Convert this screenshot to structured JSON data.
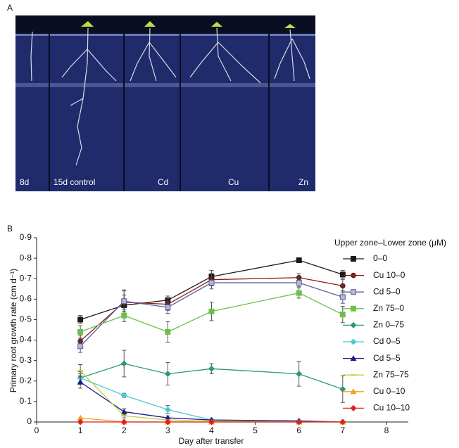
{
  "panel_a": {
    "label": "A",
    "panels": [
      "8d",
      "15d control",
      "Cd",
      "Cu",
      "Zn"
    ]
  },
  "chart_data": {
    "type": "line",
    "label": "B",
    "xlabel": "Day after transfer",
    "ylabel": "Primary root growth rate (cm d⁻¹)",
    "legend_title": "Upper zone–Lower zone (μM)",
    "x": [
      1,
      2,
      3,
      4,
      6,
      7
    ],
    "xlim": [
      0,
      8.5
    ],
    "xticks": [
      0,
      1,
      2,
      3,
      4,
      5,
      6,
      7,
      8
    ],
    "ylim": [
      0,
      0.9
    ],
    "yticks": [
      0,
      {
        "value": 0.1,
        "label": "0·1"
      },
      {
        "value": 0.2,
        "label": "0·2"
      },
      {
        "value": 0.3,
        "label": "0·3"
      },
      {
        "value": 0.4,
        "label": "0·4"
      },
      {
        "value": 0.5,
        "label": "0·5"
      },
      {
        "value": 0.6,
        "label": "0·6"
      },
      {
        "value": 0.7,
        "label": "0·7"
      },
      {
        "value": 0.8,
        "label": "0·8"
      },
      {
        "value": 0.9,
        "label": "0·9"
      }
    ],
    "series": [
      {
        "name": "0–0",
        "color": "#1a1a1a",
        "marker": "square",
        "values": [
          0.5,
          0.57,
          0.595,
          0.71,
          0.79,
          0.72
        ],
        "errors": [
          0.02,
          0.05,
          0.02,
          0.03,
          0.01,
          0.02
        ]
      },
      {
        "name": "Cu 10–0",
        "color": "#8b1a1a",
        "marker": "circle",
        "values": [
          0.395,
          0.585,
          0.575,
          0.695,
          0.705,
          0.665
        ],
        "errors": [
          0.03,
          0.06,
          0.03,
          0.03,
          0.02,
          0.03
        ]
      },
      {
        "name": "Cd 5–0",
        "color": "#5a5f9a",
        "marker": "square-open",
        "values": [
          0.37,
          0.59,
          0.56,
          0.68,
          0.68,
          0.61
        ],
        "errors": [
          0.03,
          0.05,
          0.03,
          0.03,
          0.02,
          0.03
        ]
      },
      {
        "name": "Zn 75–0",
        "color": "#6cc04a",
        "marker": "square",
        "values": [
          0.44,
          0.52,
          0.44,
          0.54,
          0.63,
          0.525
        ],
        "errors": [
          0.03,
          0.03,
          0.05,
          0.045,
          0.025,
          0.04
        ]
      },
      {
        "name": "Zn 0–75",
        "color": "#2e9a6a",
        "marker": "diamond",
        "values": [
          0.215,
          0.285,
          0.235,
          0.26,
          0.235,
          0.16
        ],
        "errors": [
          0.03,
          0.065,
          0.055,
          0.025,
          0.06,
          0.065
        ]
      },
      {
        "name": "Cd 0–5",
        "color": "#4cc9d0",
        "marker": "diamond",
        "values": [
          0.215,
          0.13,
          0.06,
          0.01,
          0.005,
          0
        ],
        "errors": [
          0.02,
          0.01,
          0.02,
          0.005,
          0,
          0
        ]
      },
      {
        "name": "Cd 5–5",
        "color": "#1c1c8c",
        "marker": "triangle",
        "values": [
          0.195,
          0.05,
          0.02,
          0.01,
          0.005,
          0
        ],
        "errors": [
          0.03,
          0.015,
          0.01,
          0,
          0,
          0
        ]
      },
      {
        "name": "Zn 75–75",
        "color": "#b8d430",
        "marker": "dash",
        "values": [
          0.25,
          0.03,
          0.01,
          0.005,
          0,
          0
        ],
        "errors": [
          0.03,
          0.01,
          0,
          0,
          0,
          0
        ]
      },
      {
        "name": "Cu 0–10",
        "color": "#f5a020",
        "marker": "triangle",
        "values": [
          0.02,
          0,
          0,
          0,
          0,
          0
        ],
        "errors": [
          0,
          0,
          0,
          0,
          0,
          0
        ]
      },
      {
        "name": "Cu 10–10",
        "color": "#e02020",
        "marker": "diamond",
        "values": [
          0,
          0,
          0,
          0,
          0,
          0
        ],
        "errors": [
          0,
          0,
          0,
          0,
          0,
          0
        ]
      }
    ]
  }
}
